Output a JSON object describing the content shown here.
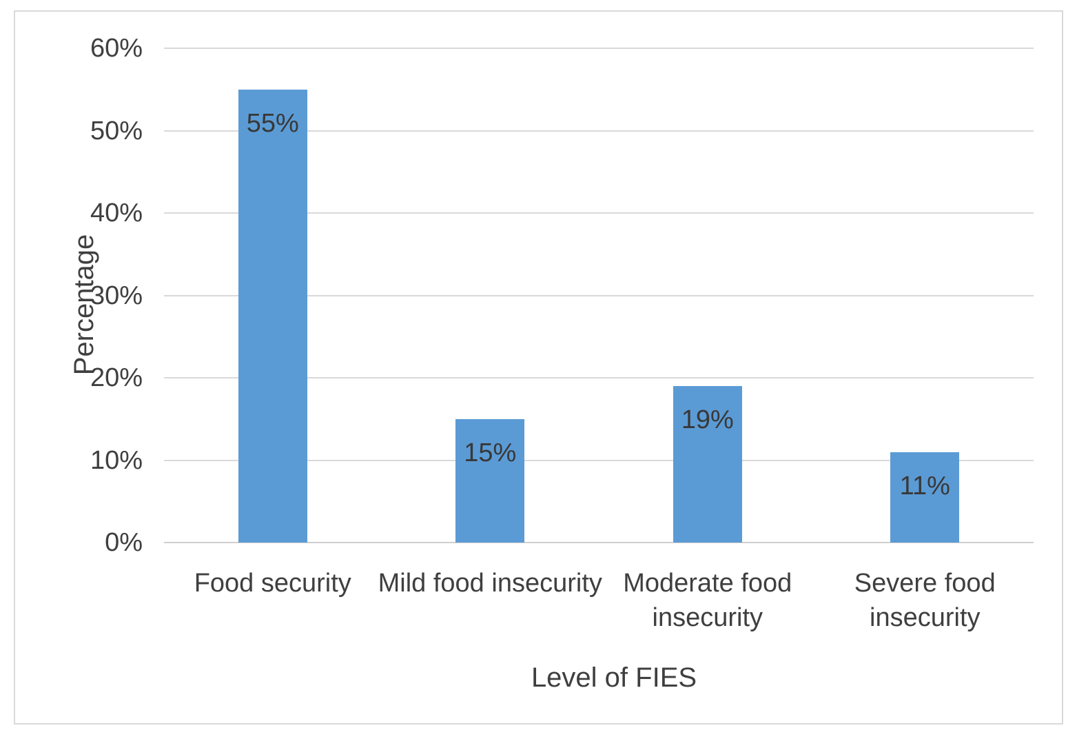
{
  "figure": {
    "background_color": "#ffffff",
    "frame_border_color": "#d9d9d9"
  },
  "chart_data": {
    "type": "bar",
    "title": "",
    "categories": [
      "Food security",
      "Mild food insecurity",
      "Moderate food\ninsecurity",
      "Severe food\ninsecurity"
    ],
    "values": [
      55,
      15,
      19,
      11
    ],
    "data_labels": [
      "55%",
      "15%",
      "19%",
      "11%"
    ],
    "xlabel": "Level of FIES",
    "ylabel": "Percentage",
    "ylim": [
      0,
      60
    ],
    "yticks": [
      0,
      10,
      20,
      30,
      40,
      50,
      60
    ],
    "ytick_labels": [
      "0%",
      "10%",
      "20%",
      "30%",
      "40%",
      "50%",
      "60%"
    ],
    "grid": true,
    "legend": false,
    "bar_color": "#5b9bd5",
    "gridline_color": "#d9d9d9",
    "baseline_color": "#cfcfcf",
    "text_color": "#3f3f3f",
    "data_label_color": "#383838"
  }
}
